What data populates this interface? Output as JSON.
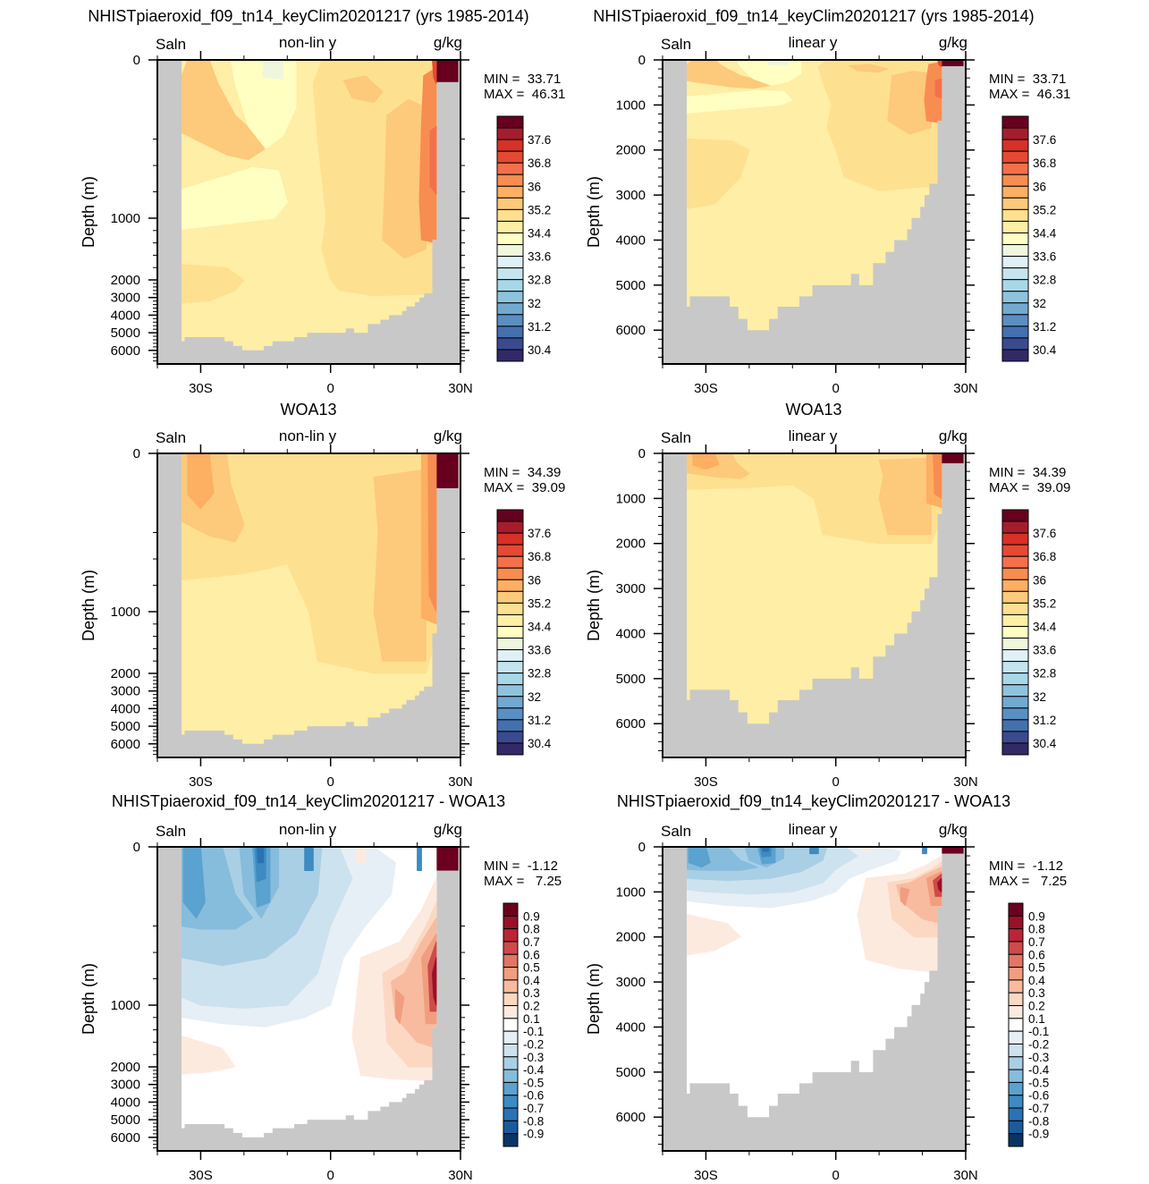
{
  "colorbars": {
    "salinity": {
      "labels": [
        "37.6",
        "36.8",
        "36",
        "35.2",
        "34.4",
        "33.6",
        "32.8",
        "32",
        "31.2",
        "30.4"
      ],
      "colors": [
        "#312a67",
        "#3b4a8e",
        "#4470b0",
        "#5a8fc2",
        "#72a9d0",
        "#8fc3dd",
        "#a7d8e8",
        "#c4e5ef",
        "#def1f6",
        "#eef7dc",
        "#ffffc2",
        "#feeea6",
        "#fee091",
        "#fdc97a",
        "#fdaf62",
        "#f88d51",
        "#f4704a",
        "#e44a33",
        "#d73027",
        "#a51d2d",
        "#67001f"
      ]
    },
    "difference": {
      "labels": [
        "0.9",
        "0.8",
        "0.7",
        "0.6",
        "0.5",
        "0.4",
        "0.3",
        "0.2",
        "0.1",
        "-0.1",
        "-0.2",
        "-0.3",
        "-0.4",
        "-0.5",
        "-0.6",
        "-0.7",
        "-0.8",
        "-0.9"
      ],
      "colors": [
        "#0a3466",
        "#1c5a9c",
        "#2b72b4",
        "#3d8bc2",
        "#5aa2cf",
        "#86bcdc",
        "#a9cfe5",
        "#cde2ef",
        "#e6eff6",
        "#ffffff",
        "#fdeadf",
        "#fcd8c2",
        "#f8bba0",
        "#f09e7f",
        "#e27564",
        "#cf4a4a",
        "#ba2535",
        "#9a1028",
        "#6b001f"
      ]
    }
  },
  "land_color": "#c8c8c8",
  "chart_data": [
    {
      "type": "heatmap",
      "title": "NHISTpiaeroxid_f09_tn14_keyClim20201217 (yrs 1985-2014)",
      "left_label": "Saln",
      "center_label": "non-lin y",
      "right_label": "g/kg",
      "min_text": "MIN =  33.71",
      "max_text": "MAX =  46.31",
      "ylabel": "Depth (m)",
      "y_scale": "non-linear",
      "ylim": [
        0,
        6750
      ],
      "xlim": [
        -40,
        30
      ],
      "y_ticks": [
        "0",
        "1000",
        "2000",
        "3000",
        "4000",
        "5000",
        "6000"
      ],
      "x_ticks": [
        "30S",
        "0",
        "30N"
      ],
      "colorbar": "salinity",
      "field": "model"
    },
    {
      "type": "heatmap",
      "title": "NHISTpiaeroxid_f09_tn14_keyClim20201217 (yrs 1985-2014)",
      "left_label": "Saln",
      "center_label": "linear y",
      "right_label": "g/kg",
      "min_text": "MIN =  33.71",
      "max_text": "MAX =  46.31",
      "ylabel": "Depth (m)",
      "y_scale": "linear",
      "ylim": [
        0,
        6750
      ],
      "xlim": [
        -40,
        30
      ],
      "y_ticks": [
        "0",
        "1000",
        "2000",
        "3000",
        "4000",
        "5000",
        "6000"
      ],
      "x_ticks": [
        "30S",
        "0",
        "30N"
      ],
      "colorbar": "salinity",
      "field": "model"
    },
    {
      "type": "heatmap",
      "title": "WOA13",
      "left_label": "Saln",
      "center_label": "non-lin y",
      "right_label": "g/kg",
      "min_text": "MIN =  34.39",
      "max_text": "MAX =  39.09",
      "ylabel": "Depth (m)",
      "y_scale": "non-linear",
      "ylim": [
        0,
        6750
      ],
      "xlim": [
        -40,
        30
      ],
      "y_ticks": [
        "0",
        "1000",
        "2000",
        "3000",
        "4000",
        "5000",
        "6000"
      ],
      "x_ticks": [
        "30S",
        "0",
        "30N"
      ],
      "colorbar": "salinity",
      "field": "obs"
    },
    {
      "type": "heatmap",
      "title": "WOA13",
      "left_label": "Saln",
      "center_label": "linear y",
      "right_label": "g/kg",
      "min_text": "MIN =  34.39",
      "max_text": "MAX =  39.09",
      "ylabel": "Depth (m)",
      "y_scale": "linear",
      "ylim": [
        0,
        6750
      ],
      "xlim": [
        -40,
        30
      ],
      "y_ticks": [
        "0",
        "1000",
        "2000",
        "3000",
        "4000",
        "5000",
        "6000"
      ],
      "x_ticks": [
        "30S",
        "0",
        "30N"
      ],
      "colorbar": "salinity",
      "field": "obs"
    },
    {
      "type": "heatmap",
      "title": "NHISTpiaeroxid_f09_tn14_keyClim20201217 - WOA13",
      "left_label": "Saln",
      "center_label": "non-lin y",
      "right_label": "g/kg",
      "min_text": "MIN =  -1.12",
      "max_text": "MAX =   7.25",
      "ylabel": "Depth (m)",
      "y_scale": "non-linear",
      "ylim": [
        0,
        6750
      ],
      "xlim": [
        -40,
        30
      ],
      "y_ticks": [
        "0",
        "1000",
        "2000",
        "3000",
        "4000",
        "5000",
        "6000"
      ],
      "x_ticks": [
        "30S",
        "0",
        "30N"
      ],
      "colorbar": "difference",
      "field": "diff"
    },
    {
      "type": "heatmap",
      "title": "NHISTpiaeroxid_f09_tn14_keyClim20201217 - WOA13",
      "left_label": "Saln",
      "center_label": "linear y",
      "right_label": "g/kg",
      "min_text": "MIN =  -1.12",
      "max_text": "MAX =   7.25",
      "ylabel": "Depth (m)",
      "y_scale": "linear",
      "ylim": [
        0,
        6750
      ],
      "xlim": [
        -40,
        30
      ],
      "y_ticks": [
        "0",
        "1000",
        "2000",
        "3000",
        "4000",
        "5000",
        "6000"
      ],
      "x_ticks": [
        "30S",
        "0",
        "30N"
      ],
      "colorbar": "difference",
      "field": "diff"
    }
  ]
}
